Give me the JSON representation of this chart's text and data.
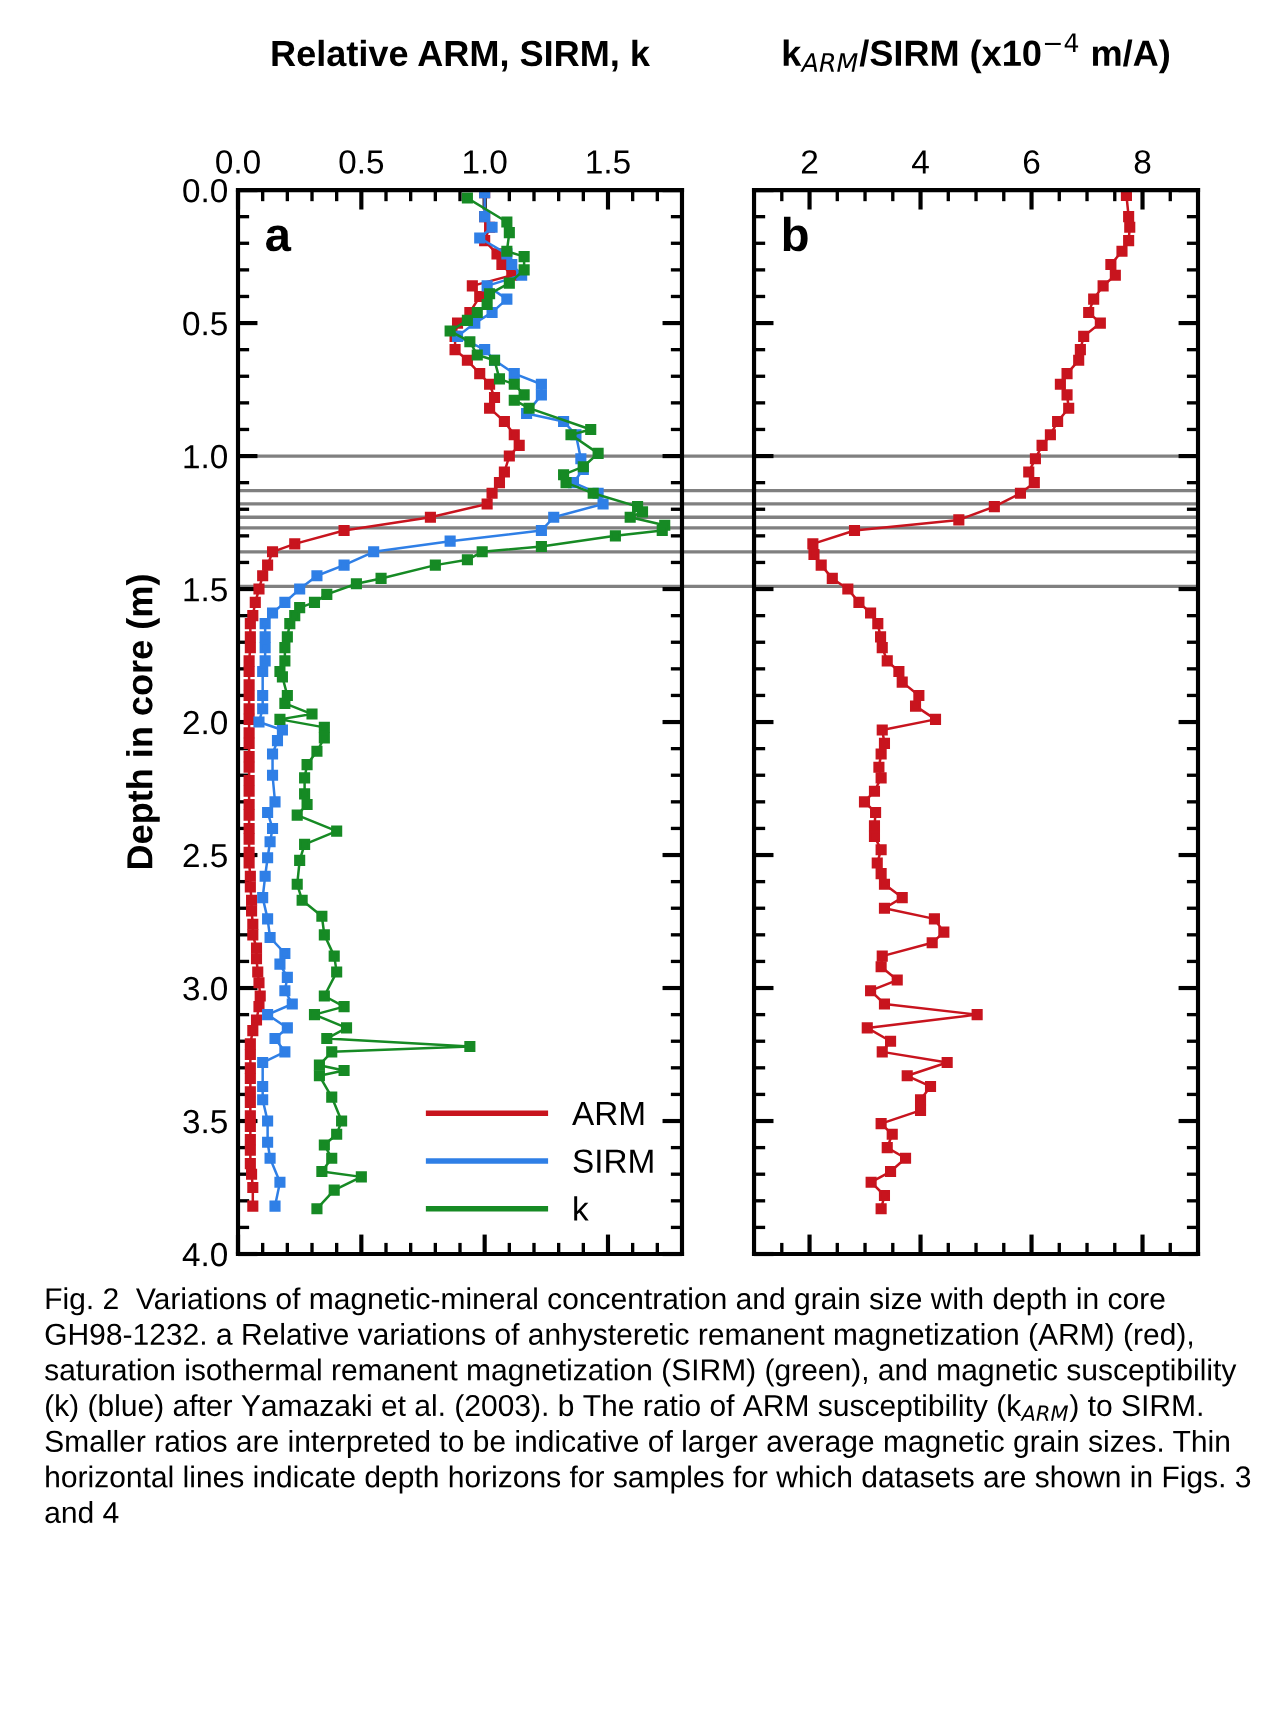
{
  "chart_data": [
    {
      "type": "line",
      "xlabel": "Relative ARM, SIRM, k",
      "ylabel": "Depth in core (m)",
      "marker": "square",
      "line_style": "solid",
      "legend": "bottom right",
      "grid": false,
      "xlim": [
        0,
        1.8
      ],
      "xticks": [
        {
          "value": 0,
          "label": "0.0"
        },
        {
          "value": 0.5,
          "label": "0.5"
        },
        {
          "value": 1,
          "label": "1.0"
        },
        {
          "value": 1.5,
          "label": "1.5"
        }
      ],
      "ylim": [
        4,
        0
      ],
      "yticks": [
        {
          "value": 0,
          "label": "0.0"
        },
        {
          "value": 0.5,
          "label": "0.5"
        },
        {
          "value": 1,
          "label": "1.0"
        },
        {
          "value": 1.5,
          "label": "1.5"
        },
        {
          "value": 2,
          "label": "2.0"
        },
        {
          "value": 2.5,
          "label": "2.5"
        },
        {
          "value": 3,
          "label": "3.0"
        },
        {
          "value": 3.5,
          "label": "3.5"
        },
        {
          "value": 4,
          "label": "4.0"
        }
      ],
      "ref_lines": [
        {
          "axis": "y",
          "value": 1.0,
          "color": "#808080"
        },
        {
          "axis": "y",
          "value": 1.13,
          "color": "#808080"
        },
        {
          "axis": "y",
          "value": 1.18,
          "color": "#808080"
        },
        {
          "axis": "y",
          "value": 1.23,
          "color": "#808080"
        },
        {
          "axis": "y",
          "value": 1.27,
          "color": "#808080"
        },
        {
          "axis": "y",
          "value": 1.36,
          "color": "#808080"
        },
        {
          "axis": "y",
          "value": 1.49,
          "color": "#808080"
        }
      ],
      "annotations": [
        "a",
        "Fig. 2  Variations of magnetic-mineral concentration and grain size with depth in core GH98-1232. a Relative variations of anhysteretic remanent magnetization (ARM) (red), saturation isothermal remanent magnetization (SIRM) (green), and magnetic susceptibility (k) (blue) after Yamazaki et al. (2003). b The ratio of ARM susceptibility (k$_{ARM}$) to SIRM. Smaller ratios are interpreted to be indicative of larger average magnetic grain sizes. Thin horizontal lines indicate depth horizons for samples for which datasets are shown in Figs. 3 and 4"
      ],
      "series": [
        {
          "name": "ARM",
          "color": "#c8141e",
          "x": [
            1.0,
            1.0,
            1.02,
            1.0,
            1.05,
            1.07,
            1.11,
            0.95,
            0.98,
            0.94,
            0.89,
            0.88,
            0.88,
            0.93,
            0.98,
            1.02,
            1.04,
            1.02,
            1.08,
            1.12,
            1.14,
            1.1,
            1.08,
            1.06,
            1.03,
            1.01,
            0.78,
            0.43,
            0.23,
            0.14,
            0.12,
            0.1,
            0.085,
            0.07,
            0.06,
            0.05,
            0.05,
            0.05,
            0.045,
            0.045,
            0.045,
            0.045,
            0.045,
            0.045,
            0.045,
            0.045,
            0.045,
            0.045,
            0.045,
            0.045,
            0.045,
            0.045,
            0.045,
            0.045,
            0.045,
            0.045,
            0.05,
            0.05,
            0.055,
            0.055,
            0.06,
            0.06,
            0.075,
            0.075,
            0.08,
            0.085,
            0.09,
            0.085,
            0.075,
            0.06,
            0.05,
            0.05,
            0.05,
            0.05,
            0.05,
            0.05,
            0.05,
            0.05,
            0.05,
            0.05,
            0.05,
            0.055,
            0.06,
            0.06
          ],
          "values": [
            0.01,
            0.1,
            0.14,
            0.19,
            0.24,
            0.28,
            0.32,
            0.36,
            0.4,
            0.46,
            0.5,
            0.55,
            0.6,
            0.64,
            0.69,
            0.73,
            0.78,
            0.82,
            0.87,
            0.92,
            0.96,
            1.0,
            1.06,
            1.1,
            1.14,
            1.18,
            1.23,
            1.28,
            1.33,
            1.36,
            1.41,
            1.45,
            1.5,
            1.55,
            1.6,
            1.63,
            1.68,
            1.72,
            1.77,
            1.81,
            1.86,
            1.9,
            1.95,
            1.99,
            2.04,
            2.08,
            2.13,
            2.17,
            2.22,
            2.26,
            2.31,
            2.35,
            2.4,
            2.44,
            2.49,
            2.53,
            2.58,
            2.62,
            2.67,
            2.71,
            2.76,
            2.8,
            2.85,
            2.89,
            2.94,
            2.98,
            3.03,
            3.07,
            3.12,
            3.16,
            3.21,
            3.25,
            3.3,
            3.34,
            3.39,
            3.43,
            3.48,
            3.52,
            3.57,
            3.61,
            3.66,
            3.7,
            3.75,
            3.82
          ]
        },
        {
          "name": "SIRM",
          "color": "#2f7fe6",
          "x": [
            1.0,
            1.0,
            1.03,
            0.98,
            1.09,
            1.11,
            1.15,
            1.01,
            1.09,
            1.03,
            0.96,
            0.89,
            1.0,
            1.04,
            1.12,
            1.23,
            1.23,
            1.17,
            1.32,
            1.37,
            1.39,
            1.4,
            1.36,
            1.46,
            1.48,
            1.28,
            1.23,
            0.86,
            0.55,
            0.43,
            0.32,
            0.25,
            0.19,
            0.14,
            0.11,
            0.11,
            0.11,
            0.11,
            0.1,
            0.1,
            0.1,
            0.085,
            0.18,
            0.16,
            0.14,
            0.14,
            0.15,
            0.12,
            0.14,
            0.13,
            0.12,
            0.11,
            0.1,
            0.12,
            0.13,
            0.19,
            0.17,
            0.2,
            0.19,
            0.22,
            0.12,
            0.2,
            0.15,
            0.19,
            0.1,
            0.1,
            0.1,
            0.12,
            0.12,
            0.13,
            0.17,
            0.15
          ],
          "values": [
            0.01,
            0.1,
            0.14,
            0.18,
            0.24,
            0.28,
            0.32,
            0.36,
            0.41,
            0.46,
            0.5,
            0.55,
            0.6,
            0.64,
            0.69,
            0.73,
            0.77,
            0.84,
            0.87,
            0.92,
            1.01,
            1.05,
            1.1,
            1.14,
            1.18,
            1.23,
            1.28,
            1.32,
            1.36,
            1.41,
            1.45,
            1.5,
            1.55,
            1.59,
            1.63,
            1.68,
            1.72,
            1.77,
            1.81,
            1.9,
            1.95,
            2.0,
            2.03,
            2.07,
            2.12,
            2.2,
            2.3,
            2.34,
            2.4,
            2.45,
            2.51,
            2.58,
            2.66,
            2.74,
            2.81,
            2.87,
            2.91,
            2.96,
            3.01,
            3.06,
            3.1,
            3.15,
            3.19,
            3.24,
            3.28,
            3.37,
            3.42,
            3.5,
            3.58,
            3.64,
            3.73,
            3.82
          ]
        },
        {
          "name": "k",
          "color": "#168a24",
          "x": [
            0.93,
            1.09,
            1.1,
            1.09,
            1.16,
            1.16,
            1.1,
            1.02,
            1.01,
            0.97,
            0.93,
            0.86,
            0.94,
            0.97,
            1.04,
            1.06,
            1.12,
            1.16,
            1.12,
            1.18,
            1.43,
            1.35,
            1.46,
            1.4,
            1.32,
            1.33,
            1.44,
            1.62,
            1.64,
            1.59,
            1.73,
            1.72,
            1.53,
            1.23,
            0.99,
            0.93,
            0.8,
            0.58,
            0.48,
            0.36,
            0.31,
            0.25,
            0.23,
            0.21,
            0.2,
            0.19,
            0.19,
            0.17,
            0.18,
            0.2,
            0.19,
            0.3,
            0.17,
            0.35,
            0.35,
            0.32,
            0.28,
            0.27,
            0.27,
            0.28,
            0.24,
            0.4,
            0.27,
            0.25,
            0.24,
            0.26,
            0.34,
            0.35,
            0.39,
            0.4,
            0.35,
            0.43,
            0.31,
            0.44,
            0.36,
            0.94,
            0.38,
            0.33,
            0.43,
            0.33,
            0.38,
            0.42,
            0.4,
            0.35,
            0.38,
            0.34,
            0.5,
            0.39,
            0.32
          ],
          "values": [
            0.03,
            0.12,
            0.16,
            0.23,
            0.25,
            0.3,
            0.35,
            0.39,
            0.43,
            0.46,
            0.49,
            0.53,
            0.57,
            0.62,
            0.64,
            0.71,
            0.73,
            0.77,
            0.79,
            0.82,
            0.9,
            0.92,
            0.99,
            1.04,
            1.07,
            1.1,
            1.14,
            1.19,
            1.21,
            1.23,
            1.26,
            1.28,
            1.3,
            1.34,
            1.36,
            1.39,
            1.41,
            1.46,
            1.48,
            1.52,
            1.55,
            1.57,
            1.6,
            1.63,
            1.68,
            1.72,
            1.77,
            1.81,
            1.83,
            1.9,
            1.93,
            1.97,
            1.99,
            2.02,
            2.06,
            2.11,
            2.16,
            2.21,
            2.27,
            2.31,
            2.35,
            2.41,
            2.46,
            2.52,
            2.61,
            2.67,
            2.73,
            2.8,
            2.88,
            2.94,
            3.03,
            3.07,
            3.1,
            3.15,
            3.19,
            3.22,
            3.24,
            3.29,
            3.31,
            3.33,
            3.41,
            3.5,
            3.55,
            3.59,
            3.64,
            3.69,
            3.71,
            3.76,
            3.83
          ]
        }
      ]
    },
    {
      "type": "line",
      "xlabel": "k$_{ARM}$/SIRM (x10$^{−4}$ m/A)",
      "marker": "square",
      "line_style": "solid",
      "grid": false,
      "tick_labels": "x",
      "xlim": [
        1,
        9
      ],
      "xticks": [
        2,
        4,
        6,
        8
      ],
      "ylim": [
        4,
        0
      ],
      "yticks": [
        0,
        0.5,
        1,
        1.5,
        2,
        2.5,
        3,
        3.5,
        4
      ],
      "ref_lines": [
        {
          "axis": "y",
          "value": 1.0,
          "color": "#808080"
        },
        {
          "axis": "y",
          "value": 1.13,
          "color": "#808080"
        },
        {
          "axis": "y",
          "value": 1.18,
          "color": "#808080"
        },
        {
          "axis": "y",
          "value": 1.23,
          "color": "#808080"
        },
        {
          "axis": "y",
          "value": 1.27,
          "color": "#808080"
        },
        {
          "axis": "y",
          "value": 1.36,
          "color": "#808080"
        },
        {
          "axis": "y",
          "value": 1.49,
          "color": "#808080"
        }
      ],
      "annotations": [
        "b"
      ],
      "series": [
        {
          "color": "#c8141e",
          "x": [
            7.71,
            7.75,
            7.77,
            7.75,
            7.63,
            7.43,
            7.51,
            7.29,
            7.12,
            7.03,
            7.24,
            6.94,
            6.88,
            6.85,
            6.64,
            6.52,
            6.64,
            6.67,
            6.47,
            6.34,
            6.19,
            6.07,
            5.95,
            6.05,
            5.8,
            5.33,
            4.69,
            2.81,
            2.06,
            2.08,
            2.21,
            2.41,
            2.69,
            2.89,
            3.1,
            3.23,
            3.28,
            3.31,
            3.4,
            3.61,
            3.67,
            3.97,
            3.91,
            4.27,
            3.31,
            3.35,
            3.29,
            3.25,
            3.29,
            3.17,
            2.99,
            3.19,
            3.17,
            3.17,
            3.29,
            3.22,
            3.29,
            3.35,
            3.67,
            3.35,
            4.25,
            4.42,
            4.21,
            3.31,
            3.29,
            3.58,
            3.1,
            3.35,
            5.02,
            3.04,
            3.46,
            3.31,
            4.48,
            3.76,
            4.18,
            4.0,
            4.0,
            3.29,
            3.49,
            3.4,
            3.73,
            3.46,
            3.11,
            3.35,
            3.29
          ],
          "values": [
            0.02,
            0.1,
            0.14,
            0.19,
            0.23,
            0.28,
            0.32,
            0.36,
            0.41,
            0.46,
            0.5,
            0.55,
            0.6,
            0.64,
            0.69,
            0.73,
            0.77,
            0.82,
            0.87,
            0.92,
            0.96,
            1.01,
            1.06,
            1.1,
            1.14,
            1.19,
            1.24,
            1.28,
            1.33,
            1.37,
            1.41,
            1.46,
            1.5,
            1.55,
            1.59,
            1.63,
            1.68,
            1.72,
            1.77,
            1.81,
            1.85,
            1.9,
            1.94,
            1.99,
            2.03,
            2.08,
            2.12,
            2.17,
            2.21,
            2.26,
            2.3,
            2.34,
            2.39,
            2.43,
            2.48,
            2.53,
            2.57,
            2.61,
            2.66,
            2.7,
            2.74,
            2.79,
            2.83,
            2.88,
            2.92,
            2.97,
            3.01,
            3.06,
            3.1,
            3.15,
            3.2,
            3.24,
            3.28,
            3.33,
            3.37,
            3.42,
            3.46,
            3.51,
            3.55,
            3.6,
            3.64,
            3.69,
            3.73,
            3.78,
            3.83
          ]
        }
      ]
    }
  ]
}
